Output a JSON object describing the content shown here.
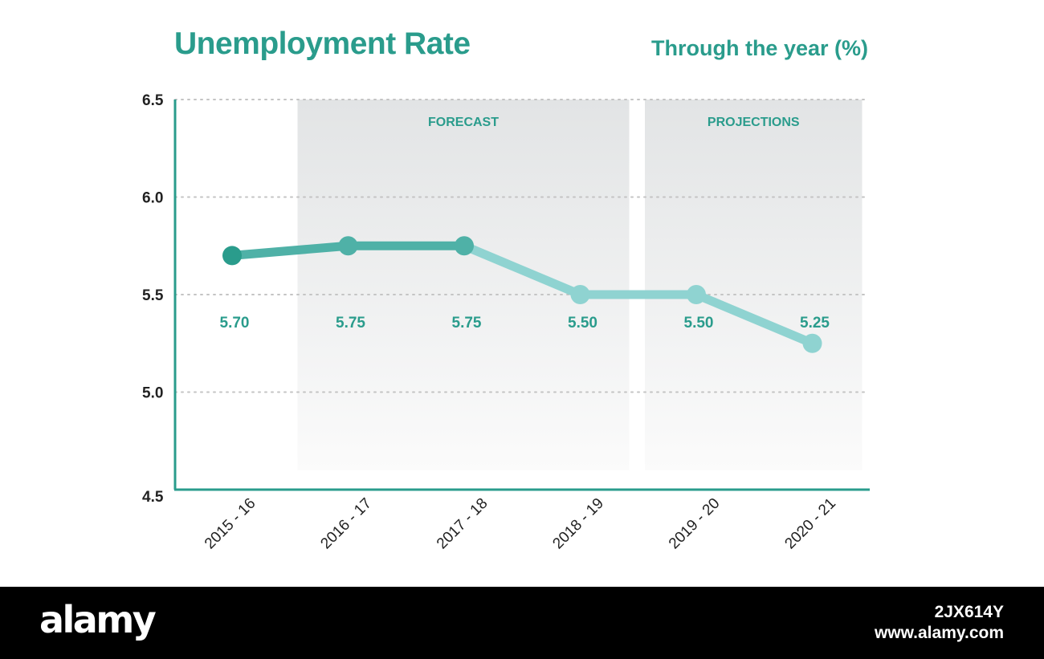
{
  "title": "Unemployment Rate",
  "subtitle": "Through the year (%)",
  "chart_data": {
    "type": "line",
    "categories": [
      "2015 - 16",
      "2016 - 17",
      "2017 - 18",
      "2018 - 19",
      "2019 - 20",
      "2020 - 21"
    ],
    "values": [
      5.7,
      5.75,
      5.75,
      5.5,
      5.5,
      5.25
    ],
    "data_labels": [
      "5.70",
      "5.75",
      "5.75",
      "5.50",
      "5.50",
      "5.25"
    ],
    "y_ticks": [
      "4.5",
      "5.0",
      "5.5",
      "6.0",
      "6.5"
    ],
    "ylim": [
      4.5,
      6.5
    ],
    "grid": true,
    "bands": [
      {
        "label": "FORECAST",
        "from_index": 1,
        "to_index": 3
      },
      {
        "label": "PROJECTIONS",
        "from_index": 4,
        "to_index": 5
      }
    ],
    "point_colors": [
      "#2a9c8c",
      "#4fb1a7",
      "#4fb1a7",
      "#8fd3d1",
      "#8fd3d1",
      "#8fd3d1"
    ],
    "colors": {
      "accent": "#2a9c8c",
      "axis": "#2a9c8c",
      "grid": "#c4c4c4",
      "band_top": "#e2e4e5",
      "band_bottom": "#fbfbfb",
      "label": "#2a9c8c"
    }
  },
  "footer": {
    "logo": "alamy",
    "image_id": "2JX614Y",
    "url": "www.alamy.com"
  }
}
